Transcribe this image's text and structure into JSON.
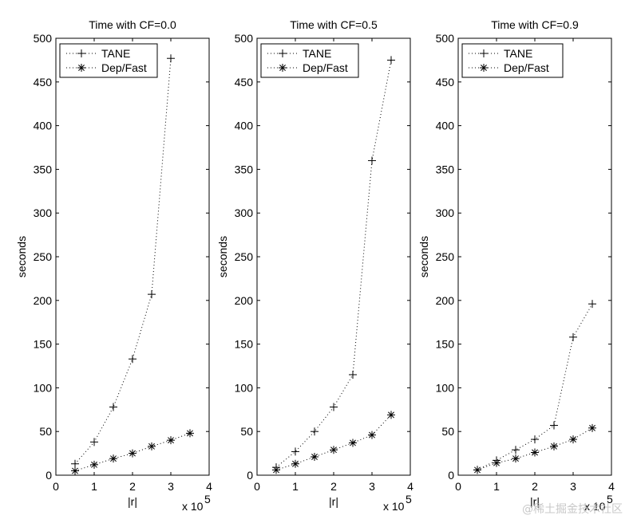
{
  "chart_data": [
    {
      "type": "line",
      "title": "Time with CF=0.0",
      "xlabel": "|r|",
      "ylabel": "seconds",
      "x_multiplier": "x 10",
      "x_multiplier_exp": "5",
      "xlim": [
        0,
        4
      ],
      "ylim": [
        0,
        500
      ],
      "xticks": [
        0,
        1,
        2,
        3,
        4
      ],
      "yticks": [
        0,
        50,
        100,
        150,
        200,
        250,
        300,
        350,
        400,
        450,
        500
      ],
      "grid": false,
      "legend_position": "top-left",
      "series": [
        {
          "name": "TANE",
          "marker": "+",
          "x": [
            0.5,
            1.0,
            1.5,
            2.0,
            2.5,
            3.0
          ],
          "y": [
            13,
            38,
            78,
            133,
            207,
            477
          ]
        },
        {
          "name": "Dep/Fast",
          "marker": "*",
          "x": [
            0.5,
            1.0,
            1.5,
            2.0,
            2.5,
            3.0,
            3.5
          ],
          "y": [
            5,
            12,
            19,
            25,
            33,
            40,
            48
          ]
        }
      ]
    },
    {
      "type": "line",
      "title": "Time with CF=0.5",
      "xlabel": "|r|",
      "ylabel": "seconds",
      "x_multiplier": "x 10",
      "x_multiplier_exp": "5",
      "xlim": [
        0,
        4
      ],
      "ylim": [
        0,
        500
      ],
      "xticks": [
        0,
        1,
        2,
        3,
        4
      ],
      "yticks": [
        0,
        50,
        100,
        150,
        200,
        250,
        300,
        350,
        400,
        450,
        500
      ],
      "grid": false,
      "legend_position": "top-left",
      "series": [
        {
          "name": "TANE",
          "marker": "+",
          "x": [
            0.5,
            1.0,
            1.5,
            2.0,
            2.5,
            3.0,
            3.5
          ],
          "y": [
            9,
            27,
            50,
            78,
            115,
            360,
            475
          ]
        },
        {
          "name": "Dep/Fast",
          "marker": "*",
          "x": [
            0.5,
            1.0,
            1.5,
            2.0,
            2.5,
            3.0,
            3.5
          ],
          "y": [
            6,
            13,
            21,
            29,
            37,
            46,
            69
          ]
        }
      ]
    },
    {
      "type": "line",
      "title": "Time with CF=0.9",
      "xlabel": "|r|",
      "ylabel": "seconds",
      "x_multiplier": "x 10",
      "x_multiplier_exp": "5",
      "xlim": [
        0,
        4
      ],
      "ylim": [
        0,
        500
      ],
      "xticks": [
        0,
        1,
        2,
        3,
        4
      ],
      "yticks": [
        0,
        50,
        100,
        150,
        200,
        250,
        300,
        350,
        400,
        450,
        500
      ],
      "grid": false,
      "legend_position": "top-left",
      "series": [
        {
          "name": "TANE",
          "marker": "+",
          "x": [
            0.5,
            1.0,
            1.5,
            2.0,
            2.5,
            3.0,
            3.5
          ],
          "y": [
            6,
            17,
            29,
            41,
            57,
            158,
            196
          ]
        },
        {
          "name": "Dep/Fast",
          "marker": "*",
          "x": [
            0.5,
            1.0,
            1.5,
            2.0,
            2.5,
            3.0,
            3.5
          ],
          "y": [
            6,
            14,
            19,
            26,
            33,
            41,
            54
          ]
        }
      ]
    }
  ],
  "watermark": "@稀土掘金技术社区"
}
